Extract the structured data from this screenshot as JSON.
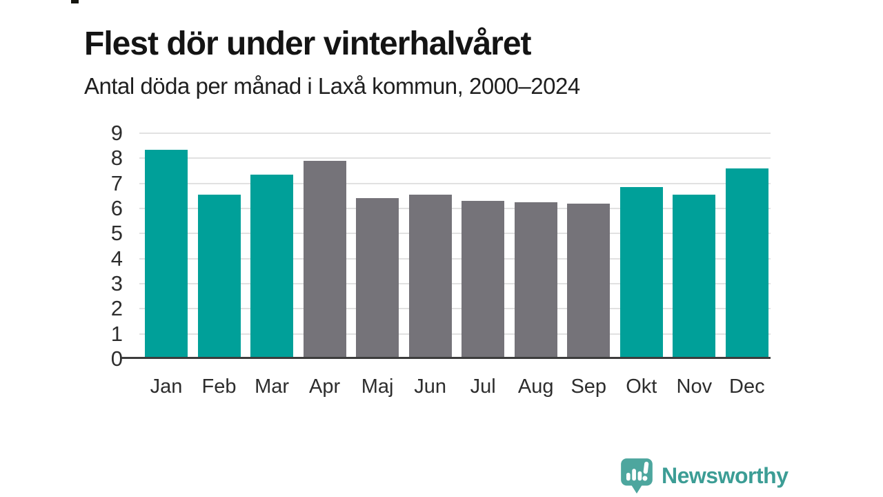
{
  "header": {
    "title": "Flest dör under vinterhalvåret",
    "subtitle": "Antal döda per månad i Laxå kommun, 2000–2024"
  },
  "branding": {
    "logo_text": "Newsworthy",
    "logo_icon": "bar-chart-speech-bubble-icon"
  },
  "colors": {
    "highlight_bar": "#00A099",
    "muted_bar": "#757379",
    "gridline": "#e1e1e1",
    "axis_line": "#3c3c3c",
    "text_dark": "#141414",
    "tick_text": "#2d2d2d",
    "logo_teal": "#4DA69E",
    "logo_text_teal": "#3c9d95"
  },
  "chart_data": {
    "type": "bar",
    "title": "Flest dör under vinterhalvåret",
    "subtitle": "Antal döda per månad i Laxå kommun, 2000–2024",
    "categories": [
      "Jan",
      "Feb",
      "Mar",
      "Apr",
      "Maj",
      "Jun",
      "Jul",
      "Aug",
      "Sep",
      "Okt",
      "Nov",
      "Dec"
    ],
    "values": [
      8.35,
      6.55,
      7.35,
      7.9,
      6.4,
      6.55,
      6.3,
      6.25,
      6.2,
      6.85,
      6.55,
      7.6
    ],
    "highlighted": [
      true,
      true,
      true,
      false,
      false,
      false,
      false,
      false,
      false,
      true,
      true,
      true
    ],
    "xlabel": "",
    "ylabel": "",
    "ylim": [
      0,
      9
    ],
    "yticks": [
      0,
      1,
      2,
      3,
      4,
      5,
      6,
      7,
      8,
      9
    ],
    "grid": true,
    "legend": "none"
  }
}
